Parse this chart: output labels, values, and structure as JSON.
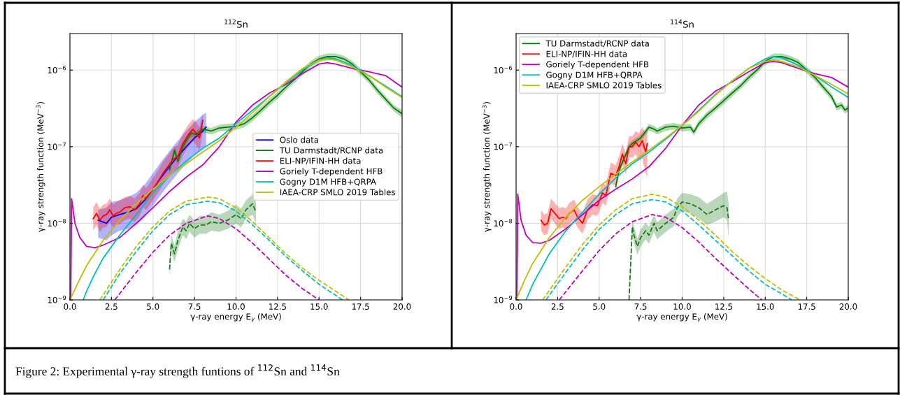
{
  "chart_data": [
    {
      "type": "line",
      "title": "$^{112}$Sn",
      "xlabel": "γ-ray energy E$_{γ}$ (MeV)",
      "ylabel": "γ-ray strength function (MeV$^{−3}$)",
      "log": "y",
      "grid": true,
      "legend": "center right",
      "xlim": [
        0,
        20
      ],
      "xticks": [
        {
          "value": 0,
          "label": "0.0"
        },
        {
          "value": 2.5,
          "label": "2.5"
        },
        {
          "value": 5,
          "label": "5.0"
        },
        {
          "value": 7.5,
          "label": "7.5"
        },
        {
          "value": 10,
          "label": "10.0"
        },
        {
          "value": 12.5,
          "label": "12.5"
        },
        {
          "value": 15,
          "label": "15.0"
        },
        {
          "value": 17.5,
          "label": "17.5"
        },
        {
          "value": 20,
          "label": "20.0"
        }
      ],
      "ylim": [
        1e-09,
        3e-06
      ],
      "yticks": [
        {
          "value": 1e-09,
          "label": "10$^{−9}$"
        },
        {
          "value": 1e-08,
          "label": "10$^{−8}$"
        },
        {
          "value": 1e-07,
          "label": "10$^{−7}$"
        },
        {
          "value": 1e-06,
          "label": "10$^{−6}$"
        }
      ],
      "series": [
        {
          "name": "Oslo data",
          "color": "#0000ff",
          "x": [
            1.7,
            2.2,
            2.5,
            3.0,
            3.5,
            4.0,
            4.5,
            5.0,
            5.5,
            6.0,
            6.5,
            7.0,
            7.5,
            8.0,
            8.2
          ],
          "values": [
            1.1e-08,
            1e-08,
            1.2e-08,
            1.3e-08,
            1.4e-08,
            1.55e-08,
            2e-08,
            2.8e-08,
            4e-08,
            5.5e-08,
            7.5e-08,
            1e-07,
            1.3e-07,
            1.6e-07,
            1.8e-07
          ],
          "lower": [
            6.5e-09,
            6e-09,
            7e-09,
            8e-09,
            8.5e-09,
            9.5e-09,
            1.2e-08,
            1.7e-08,
            2.4e-08,
            3.3e-08,
            4.5e-08,
            6e-08,
            7.8e-08,
            9.5e-08,
            1e-07
          ],
          "upper": [
            1.5e-08,
            1.6e-08,
            1.9e-08,
            2e-08,
            2.2e-08,
            2.5e-08,
            3.2e-08,
            4.5e-08,
            6.4e-08,
            8.8e-08,
            1.2e-07,
            1.6e-07,
            2.1e-07,
            2.6e-07,
            2.8e-07
          ]
        },
        {
          "name": "TU Darmstadt/RCNP data",
          "color": "#008000",
          "x": [
            6.0,
            6.3,
            6.5,
            6.8,
            7.0,
            7.3,
            7.6,
            8.0,
            8.5,
            9.0,
            9.5,
            10.0,
            10.5,
            11.0,
            11.5,
            12.0,
            12.5,
            13.0,
            13.5,
            14.0,
            14.5,
            15.0,
            15.5,
            16.0,
            16.5,
            17.0,
            17.5,
            18.0,
            18.5,
            19.0,
            19.5,
            20.0
          ],
          "values": [
            5e-08,
            9e-08,
            6.5e-08,
            1e-07,
            1.2e-07,
            1.5e-07,
            1.45e-07,
            1.7e-07,
            1.6e-07,
            1.75e-07,
            1.8e-07,
            1.85e-07,
            2e-07,
            2.4e-07,
            3e-07,
            3.8e-07,
            4.7e-07,
            6e-07,
            7.5e-07,
            9.5e-07,
            1.2e-06,
            1.4e-06,
            1.5e-06,
            1.5e-06,
            1.4e-06,
            1.2e-06,
            9.5e-07,
            7.5e-07,
            5.5e-07,
            4.2e-07,
            3.2e-07,
            2.7e-07
          ],
          "lower": [
            4.5e-08,
            8e-08,
            5.8e-08,
            9e-08,
            1.08e-07,
            1.35e-07,
            1.3e-07,
            1.53e-07,
            1.44e-07,
            1.58e-07,
            1.62e-07,
            1.67e-07,
            1.8e-07,
            2.16e-07,
            2.7e-07,
            3.4e-07,
            4.2e-07,
            5.4e-07,
            6.75e-07,
            8.6e-07,
            1.08e-06,
            1.26e-06,
            1.35e-06,
            1.35e-06,
            1.26e-06,
            1.08e-06,
            8.6e-07,
            6.75e-07,
            4.95e-07,
            3.8e-07,
            2.9e-07,
            2.4e-07
          ],
          "upper": [
            5.5e-08,
            1e-07,
            7.2e-08,
            1.1e-07,
            1.32e-07,
            1.65e-07,
            1.6e-07,
            1.87e-07,
            1.76e-07,
            1.93e-07,
            1.98e-07,
            2.04e-07,
            2.2e-07,
            2.64e-07,
            3.3e-07,
            4.2e-07,
            5.2e-07,
            6.6e-07,
            8.25e-07,
            1.05e-06,
            1.32e-06,
            1.54e-06,
            1.65e-06,
            1.65e-06,
            1.54e-06,
            1.32e-06,
            1.05e-06,
            8.25e-07,
            6.05e-07,
            4.6e-07,
            3.5e-07,
            3e-07
          ]
        },
        {
          "name": "ELI-NP/IFIN-HH data",
          "color": "#ff0000",
          "x": [
            1.4,
            1.6,
            1.8,
            2.0,
            2.2,
            2.4,
            2.6,
            2.8,
            3.0,
            3.3,
            3.6,
            3.9,
            4.2,
            4.4,
            4.6,
            5.0,
            5.3,
            5.6,
            5.9,
            6.2,
            6.5,
            6.8,
            7.1,
            7.4,
            7.6,
            7.8,
            8.0
          ],
          "values": [
            1.15e-08,
            1.35e-08,
            1.1e-08,
            1.25e-08,
            1.3e-08,
            1.5e-08,
            1.25e-08,
            1.35e-08,
            1.4e-08,
            1.6e-08,
            1.65e-08,
            1.5e-08,
            1.8e-08,
            2.3e-08,
            2.1e-08,
            2.8e-08,
            3.5e-08,
            4.5e-08,
            5.5e-08,
            6.8e-08,
            7.5e-08,
            1.1e-07,
            1.4e-07,
            1.7e-07,
            1.5e-07,
            1.3e-07,
            2.2e-07
          ],
          "lower": [
            8e-09,
            9.5e-09,
            7.7e-09,
            8.8e-09,
            9e-09,
            1.05e-08,
            8.8e-09,
            9.5e-09,
            9.8e-09,
            1.1e-08,
            1.15e-08,
            1.05e-08,
            1.25e-08,
            1.6e-08,
            1.5e-08,
            2e-08,
            2.5e-08,
            3.2e-08,
            3.9e-08,
            4.8e-08,
            5.3e-08,
            7.7e-08,
            9.8e-08,
            1.2e-07,
            1.05e-07,
            9e-08,
            1.5e-07
          ],
          "upper": [
            1.6e-08,
            1.9e-08,
            1.55e-08,
            1.75e-08,
            1.8e-08,
            2.1e-08,
            1.75e-08,
            1.9e-08,
            2e-08,
            2.2e-08,
            2.3e-08,
            2.1e-08,
            2.5e-08,
            3.2e-08,
            2.9e-08,
            3.9e-08,
            4.9e-08,
            6.3e-08,
            7.7e-08,
            9.5e-08,
            1.05e-07,
            1.5e-07,
            1.9e-07,
            2.3e-07,
            2.1e-07,
            1.8e-07,
            2.8e-07
          ]
        },
        {
          "name": "Goriely T-dependent HFB",
          "color": "#bf00bf",
          "x": [
            0.05,
            0.1,
            0.3,
            0.6,
            1.0,
            1.5,
            2.0,
            3.0,
            4.0,
            5.0,
            6.0,
            7.0,
            8.0,
            9.0,
            10.0,
            11.0,
            12.0,
            13.0,
            14.0,
            15.0,
            15.5,
            16.0,
            17.0,
            18.0,
            19.0,
            20.0
          ],
          "values": [
            1e-09,
            2.1e-08,
            1e-08,
            6.5e-09,
            5e-09,
            4.8e-09,
            5.2e-09,
            6.5e-09,
            1e-08,
            1.6e-08,
            2.6e-08,
            4e-08,
            5.8e-08,
            1e-07,
            2.1e-07,
            3.5e-07,
            5e-07,
            6.5e-07,
            9e-07,
            1.2e-06,
            1.25e-06,
            1.2e-06,
            1.05e-06,
            9.5e-07,
            8.5e-07,
            6e-07
          ]
        },
        {
          "name": "Gogny D1M HFB+QRPA",
          "color": "#00bfbf",
          "x": [
            0.8,
            1.0,
            1.5,
            2.0,
            3.0,
            4.0,
            5.0,
            6.0,
            7.0,
            8.0,
            9.0,
            10.0,
            11.0,
            12.0,
            13.0,
            14.0,
            15.0,
            15.5,
            16.0,
            17.0,
            18.0,
            19.0,
            20.0
          ],
          "values": [
            1e-09,
            1.3e-09,
            2.2e-09,
            3.5e-09,
            7e-09,
            1.3e-08,
            2.5e-08,
            4.2e-08,
            6.5e-08,
            9.5e-08,
            1.3e-07,
            2e-07,
            3e-07,
            4.5e-07,
            6.8e-07,
            1e-06,
            1.35e-06,
            1.45e-06,
            1.4e-06,
            1.15e-06,
            8.5e-07,
            6.2e-07,
            4.5e-07
          ]
        },
        {
          "name": "IAEA-CRP SMLO 2019 Tables",
          "color": "#bfbf00",
          "x": [
            0.0,
            0.5,
            1.0,
            2.0,
            3.0,
            4.0,
            5.0,
            6.0,
            7.0,
            8.0,
            9.0,
            10.0,
            11.0,
            12.0,
            13.0,
            14.0,
            15.0,
            15.5,
            16.0,
            17.0,
            18.0,
            19.0,
            20.0
          ],
          "values": [
            1e-09,
            1.7e-09,
            2.8e-09,
            6e-09,
            1.1e-08,
            1.8e-08,
            2.8e-08,
            4.2e-08,
            6e-08,
            8.5e-08,
            1.2e-07,
            1.8e-07,
            2.8e-07,
            4.5e-07,
            7e-07,
            1.05e-06,
            1.35e-06,
            1.4e-06,
            1.35e-06,
            1.1e-06,
            8.5e-07,
            6e-07,
            4.4e-07
          ]
        },
        {
          "color": "#1a7a1a",
          "line_style": "dashed",
          "x": [
            6.0,
            6.1,
            6.3,
            6.5,
            6.8,
            7.0,
            7.2,
            7.5,
            7.8,
            8.2,
            8.5,
            9.0,
            9.5,
            10.0,
            10.3,
            10.6,
            11.0,
            11.2
          ],
          "values": [
            2.5e-09,
            5.5e-09,
            4e-09,
            6e-09,
            9e-09,
            8e-09,
            1e-08,
            8.5e-09,
            9.5e-09,
            9.5e-09,
            1.05e-08,
            1e-08,
            1.1e-08,
            1.3e-08,
            1.15e-08,
            1.5e-08,
            1.8e-08,
            1.4e-08
          ],
          "lower": [
            2e-09,
            4.3e-09,
            3.1e-09,
            4.6e-09,
            7e-09,
            6.2e-09,
            7.7e-09,
            6.5e-09,
            7.3e-09,
            7.3e-09,
            8e-09,
            7.7e-09,
            8.5e-09,
            1e-08,
            8.8e-09,
            1.15e-08,
            1.3e-08,
            1e-08
          ],
          "upper": [
            3.2e-09,
            7e-09,
            5.2e-09,
            7.8e-09,
            1.15e-08,
            1.05e-08,
            1.3e-08,
            1.1e-08,
            1.25e-08,
            1.25e-08,
            1.4e-08,
            1.3e-08,
            1.45e-08,
            1.75e-08,
            1.55e-08,
            2e-08,
            2.4e-08,
            1.9e-08
          ]
        },
        {
          "color": "#bfbf00",
          "line_style": "dashed",
          "x": [
            1.8,
            3.0,
            4.0,
            5.0,
            6.0,
            7.0,
            8.3,
            9.0,
            10.0,
            11.0,
            12.0,
            13.0,
            14.0,
            15.0,
            16.0,
            16.8
          ],
          "values": [
            1e-09,
            2.5e-09,
            5e-09,
            9e-09,
            1.45e-08,
            1.95e-08,
            2.2e-08,
            2.1e-08,
            1.6e-08,
            1.05e-08,
            6.5e-09,
            4e-09,
            2.6e-09,
            1.8e-09,
            1.3e-09,
            1e-09
          ]
        },
        {
          "color": "#00bfbf",
          "line_style": "dashed",
          "x": [
            2.0,
            3.0,
            4.0,
            5.0,
            6.0,
            7.0,
            8.3,
            9.0,
            10.0,
            11.0,
            12.0,
            13.0,
            14.0,
            15.0,
            16.0,
            16.4
          ],
          "values": [
            1e-09,
            2.2e-09,
            4.3e-09,
            8e-09,
            1.3e-08,
            1.75e-08,
            1.95e-08,
            1.85e-08,
            1.45e-08,
            9.5e-09,
            6e-09,
            3.7e-09,
            2.4e-09,
            1.6e-09,
            1.15e-09,
            1e-09
          ]
        },
        {
          "color": "#bf00bf",
          "line_style": "dashed",
          "x": [
            2.7,
            4.0,
            5.0,
            6.0,
            7.0,
            8.3,
            9.0,
            10.0,
            11.0,
            12.0,
            13.0,
            14.0,
            15.0
          ],
          "values": [
            1e-09,
            2.3e-09,
            4.2e-09,
            7e-09,
            1e-08,
            1.25e-08,
            1.15e-08,
            8.5e-09,
            5.5e-09,
            3.4e-09,
            2.1e-09,
            1.4e-09,
            1e-09
          ]
        }
      ]
    },
    {
      "type": "line",
      "title": "$^{114}$Sn",
      "xlabel": "γ-ray energy E$_{γ}$ (MeV)",
      "ylabel": "γ-ray strength function (MeV$^{−3}$)",
      "log": "y",
      "grid": true,
      "legend": "top left",
      "xlim": [
        0,
        20
      ],
      "xticks": [
        {
          "value": 0,
          "label": "0.0"
        },
        {
          "value": 2.5,
          "label": "2.5"
        },
        {
          "value": 5,
          "label": "5.0"
        },
        {
          "value": 7.5,
          "label": "7.5"
        },
        {
          "value": 10,
          "label": "10.0"
        },
        {
          "value": 12.5,
          "label": "12.5"
        },
        {
          "value": 15,
          "label": "15.0"
        },
        {
          "value": 17.5,
          "label": "17.5"
        },
        {
          "value": 20,
          "label": "20.0"
        }
      ],
      "ylim": [
        1e-09,
        3e-06
      ],
      "yticks": [
        {
          "value": 1e-09,
          "label": "10$^{−9}$"
        },
        {
          "value": 1e-08,
          "label": "10$^{−8}$"
        },
        {
          "value": 1e-07,
          "label": "10$^{−7}$"
        },
        {
          "value": 1e-06,
          "label": "10$^{−6}$"
        }
      ],
      "series": [
        {
          "name": "TU Darmstadt/RCNP data",
          "color": "#008000",
          "x": [
            6.0,
            6.2,
            6.5,
            6.8,
            7.0,
            7.5,
            8.0,
            8.3,
            8.5,
            9.0,
            9.5,
            10.0,
            10.5,
            10.7,
            11.0,
            11.5,
            12.0,
            12.5,
            13.0,
            13.5,
            14.0,
            14.5,
            15.0,
            15.5,
            16.0,
            16.5,
            17.0,
            17.5,
            18.0,
            18.5,
            19.0,
            19.3,
            19.6,
            19.8,
            20.0
          ],
          "values": [
            3e-08,
            5e-08,
            7e-08,
            1e-07,
            1.1e-07,
            1.3e-07,
            1.8e-07,
            1.7e-07,
            1.6e-07,
            1.8e-07,
            1.85e-07,
            1.75e-07,
            1.8e-07,
            1.55e-07,
            2e-07,
            2.6e-07,
            3.2e-07,
            4e-07,
            5e-07,
            6.2e-07,
            8e-07,
            1e-06,
            1.3e-06,
            1.5e-06,
            1.5e-06,
            1.4e-06,
            1.25e-06,
            1e-06,
            8e-07,
            6e-07,
            4.5e-07,
            3.3e-07,
            3.5e-07,
            3e-07,
            3.2e-07
          ],
          "lower": [
            2.7e-08,
            4.5e-08,
            6.3e-08,
            9e-08,
            9.9e-08,
            1.17e-07,
            1.62e-07,
            1.53e-07,
            1.44e-07,
            1.62e-07,
            1.67e-07,
            1.58e-07,
            1.62e-07,
            1.4e-07,
            1.8e-07,
            2.34e-07,
            2.9e-07,
            3.6e-07,
            4.5e-07,
            5.6e-07,
            7.2e-07,
            9e-07,
            1.17e-06,
            1.35e-06,
            1.35e-06,
            1.26e-06,
            1.13e-06,
            9e-07,
            7.2e-07,
            5.4e-07,
            4.05e-07,
            2.97e-07,
            3.15e-07,
            2.7e-07,
            2.9e-07
          ],
          "upper": [
            3.3e-08,
            5.5e-08,
            7.7e-08,
            1.1e-07,
            1.21e-07,
            1.43e-07,
            1.98e-07,
            1.87e-07,
            1.76e-07,
            1.98e-07,
            2.04e-07,
            1.93e-07,
            1.98e-07,
            1.7e-07,
            2.2e-07,
            2.86e-07,
            3.5e-07,
            4.4e-07,
            5.5e-07,
            6.8e-07,
            8.8e-07,
            1.1e-06,
            1.43e-06,
            1.65e-06,
            1.65e-06,
            1.54e-06,
            1.38e-06,
            1.1e-06,
            8.8e-07,
            6.6e-07,
            4.95e-07,
            3.63e-07,
            3.85e-07,
            3.3e-07,
            3.5e-07
          ]
        },
        {
          "name": "ELI-NP/IFIN-HH data",
          "color": "#ff0000",
          "x": [
            1.5,
            1.7,
            1.9,
            2.1,
            2.4,
            2.6,
            2.8,
            3.0,
            3.2,
            3.5,
            3.7,
            4.0,
            4.3,
            4.6,
            4.9,
            5.2,
            5.4,
            5.7,
            6.0,
            6.2,
            6.4,
            6.6,
            6.8,
            7.0,
            7.2,
            7.4,
            7.6,
            7.8,
            7.9
          ],
          "values": [
            1.1e-08,
            9.5e-09,
            1e-08,
            1.55e-08,
            1.3e-08,
            1.15e-08,
            1.2e-08,
            1.15e-08,
            1.35e-08,
            1.5e-08,
            1.2e-08,
            1e-08,
            1.5e-08,
            1.75e-08,
            1.7e-08,
            2.5e-08,
            2.3e-08,
            4.5e-08,
            4.2e-08,
            5.5e-08,
            8e-08,
            6e-08,
            1e-07,
            1e-07,
            1.15e-07,
            1e-07,
            1.2e-07,
            8.5e-08,
            1.1e-07
          ],
          "lower": [
            8e-09,
            7e-09,
            7.3e-09,
            1.15e-08,
            9.5e-09,
            8.4e-09,
            8.8e-09,
            8.4e-09,
            9.9e-09,
            1.1e-08,
            8.8e-09,
            7.3e-09,
            1.1e-08,
            1.3e-08,
            1.25e-08,
            1.85e-08,
            1.7e-08,
            3.3e-08,
            3.1e-08,
            4e-08,
            5.9e-08,
            4.4e-08,
            7.3e-08,
            7.3e-08,
            8e-08,
            6.5e-08,
            7e-08,
            4.5e-08,
            4e-08
          ],
          "upper": [
            1.5e-08,
            1.3e-08,
            1.37e-08,
            2.1e-08,
            1.78e-08,
            1.57e-08,
            1.64e-08,
            1.57e-08,
            1.85e-08,
            2.05e-08,
            1.64e-08,
            1.37e-08,
            2.05e-08,
            2.4e-08,
            2.3e-08,
            3.4e-08,
            3.15e-08,
            6.2e-08,
            5.7e-08,
            7.5e-08,
            1.1e-07,
            8.2e-08,
            1.37e-07,
            1.37e-07,
            1.6e-07,
            1.5e-07,
            1.8e-07,
            1.5e-07,
            1.7e-07
          ]
        },
        {
          "name": "Goriely T-dependent HFB",
          "color": "#bf00bf",
          "x": [
            0.05,
            0.1,
            0.3,
            0.6,
            1.0,
            1.5,
            2.0,
            3.0,
            4.0,
            5.0,
            6.0,
            7.0,
            8.0,
            9.0,
            10.0,
            11.0,
            12.0,
            13.0,
            14.0,
            15.0,
            15.5,
            16.0,
            17.0,
            18.0,
            19.0,
            20.0
          ],
          "values": [
            1e-09,
            2.4e-08,
            1.1e-08,
            7e-09,
            5.6e-09,
            5.5e-09,
            6e-09,
            8.5e-09,
            1.3e-08,
            2e-08,
            2.8e-08,
            3.8e-08,
            5.5e-08,
            9.5e-08,
            1.9e-07,
            3.5e-07,
            5.3e-07,
            7e-07,
            9.5e-07,
            1.25e-06,
            1.3e-06,
            1.25e-06,
            1.05e-06,
            9e-07,
            8e-07,
            6e-07
          ]
        },
        {
          "name": "Gogny D1M HFB+QRPA",
          "color": "#00bfbf",
          "x": [
            0.6,
            1.0,
            2.0,
            3.0,
            4.0,
            5.0,
            6.0,
            7.0,
            8.0,
            9.0,
            10.0,
            11.0,
            12.0,
            13.0,
            14.0,
            15.0,
            15.5,
            16.0,
            17.0,
            18.0,
            19.0,
            20.0
          ],
          "values": [
            1e-09,
            1.6e-09,
            4e-09,
            8e-09,
            1.4e-08,
            2.4e-08,
            3.9e-08,
            6e-08,
            8.5e-08,
            1.25e-07,
            1.9e-07,
            3e-07,
            4.8e-07,
            7.2e-07,
            1.05e-06,
            1.4e-06,
            1.5e-06,
            1.45e-06,
            1.15e-06,
            8.5e-07,
            6e-07,
            4.4e-07
          ]
        },
        {
          "name": "IAEA-CRP SMLO 2019 Tables",
          "color": "#bfbf00",
          "x": [
            0.0,
            0.5,
            1.0,
            2.0,
            3.0,
            4.0,
            5.0,
            6.0,
            7.0,
            8.0,
            9.0,
            10.0,
            11.0,
            12.0,
            13.0,
            14.0,
            15.0,
            15.5,
            16.0,
            17.0,
            18.0,
            19.0,
            20.0
          ],
          "values": [
            1e-09,
            1.8e-09,
            3e-09,
            6.5e-09,
            1.2e-08,
            2e-08,
            3e-08,
            4.4e-08,
            6.3e-08,
            9e-08,
            1.3e-07,
            1.9e-07,
            2.9e-07,
            4.7e-07,
            7.2e-07,
            1.05e-06,
            1.3e-06,
            1.35e-06,
            1.3e-06,
            1.1e-06,
            8.5e-07,
            6.5e-07,
            4.9e-07
          ]
        },
        {
          "color": "#1a7a1a",
          "line_style": "dashed",
          "x": [
            6.8,
            6.9,
            7.0,
            7.1,
            7.3,
            7.5,
            7.8,
            8.0,
            8.3,
            8.5,
            9.0,
            9.5,
            9.7,
            10.0,
            10.5,
            11.0,
            11.5,
            12.0,
            12.5,
            12.7,
            12.8
          ],
          "values": [
            1e-09,
            3e-09,
            9e-09,
            7e-09,
            5e-09,
            6.5e-09,
            8e-09,
            7e-09,
            1e-08,
            8e-09,
            1e-08,
            1.2e-08,
            1.6e-08,
            1.9e-08,
            1.8e-08,
            1.6e-08,
            1.3e-08,
            1.5e-08,
            1.7e-08,
            1.6e-08,
            1.1e-08
          ],
          "lower": [
            1e-09,
            2.4e-09,
            7e-09,
            5.5e-09,
            3.9e-09,
            5e-09,
            6.2e-09,
            5.4e-09,
            7.7e-09,
            6.2e-09,
            7.7e-09,
            9.2e-09,
            1.2e-08,
            1.45e-08,
            1.35e-08,
            1.15e-08,
            9.5e-09,
            1.05e-08,
            1.2e-08,
            1.1e-08,
            6.5e-09
          ],
          "upper": [
            1.3e-09,
            3.8e-09,
            1.15e-08,
            9e-09,
            6.4e-09,
            8.3e-09,
            1.03e-08,
            9e-09,
            1.3e-08,
            1.03e-08,
            1.3e-08,
            1.55e-08,
            2.1e-08,
            2.5e-08,
            2.4e-08,
            2.2e-08,
            1.8e-08,
            2.1e-08,
            2.5e-08,
            2.6e-08,
            1.8e-08
          ]
        },
        {
          "color": "#bfbf00",
          "line_style": "dashed",
          "x": [
            1.6,
            3.0,
            4.0,
            5.0,
            6.0,
            7.0,
            8.2,
            9.0,
            10.0,
            11.0,
            12.0,
            13.0,
            14.0,
            15.0,
            16.0,
            17.1
          ],
          "values": [
            1e-09,
            2.7e-09,
            5.3e-09,
            9.5e-09,
            1.5e-08,
            2.1e-08,
            2.4e-08,
            2.2e-08,
            1.65e-08,
            1.1e-08,
            7e-09,
            4.3e-09,
            2.8e-09,
            1.9e-09,
            1.35e-09,
            1e-09
          ]
        },
        {
          "color": "#00bfbf",
          "line_style": "dashed",
          "x": [
            1.8,
            3.0,
            4.0,
            5.0,
            6.0,
            7.0,
            8.2,
            9.0,
            10.0,
            11.0,
            12.0,
            13.0,
            14.0,
            15.0,
            16.0,
            16.6
          ],
          "values": [
            1e-09,
            2.3e-09,
            4.5e-09,
            8.3e-09,
            1.3e-08,
            1.8e-08,
            2.05e-08,
            1.9e-08,
            1.45e-08,
            9.5e-09,
            6e-09,
            3.8e-09,
            2.4e-09,
            1.6e-09,
            1.2e-09,
            1e-09
          ]
        },
        {
          "color": "#bf00bf",
          "line_style": "dashed",
          "x": [
            2.6,
            4.0,
            5.0,
            6.0,
            7.0,
            8.2,
            9.0,
            10.0,
            11.0,
            12.0,
            13.0,
            14.0,
            14.8
          ],
          "values": [
            1e-09,
            2.4e-09,
            4.4e-09,
            7.3e-09,
            1.05e-08,
            1.3e-08,
            1.2e-08,
            8.8e-09,
            5.7e-09,
            3.5e-09,
            2.2e-09,
            1.4e-09,
            1e-09
          ]
        }
      ]
    },
    {
      "type": "other",
      "annotations": [
        "Figure 2: Experimental γ-ray strength funtions of $^{112}$Sn and $^{114}$Sn"
      ]
    }
  ]
}
